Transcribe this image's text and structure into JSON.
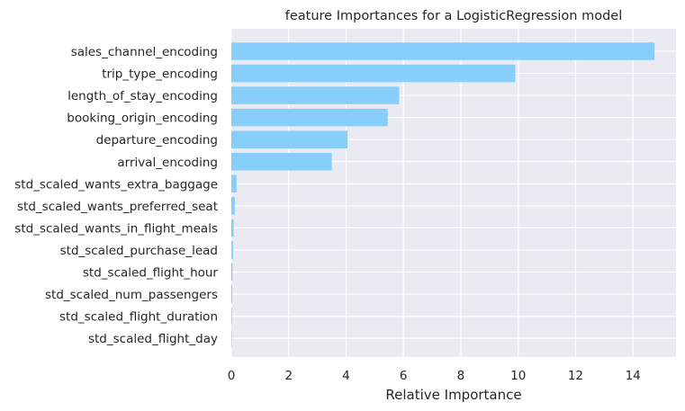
{
  "chart_data": {
    "type": "bar",
    "orientation": "horizontal",
    "title": "feature Importances for a LogisticRegression model",
    "xlabel": "Relative Importance",
    "ylabel": "",
    "xlim": [
      0,
      15.5
    ],
    "xticks": [
      0,
      2,
      4,
      6,
      8,
      10,
      12,
      14
    ],
    "grid": true,
    "bar_color": "#87cefa",
    "background_color": "#eaeaf2",
    "categories": [
      "sales_channel_encoding",
      "trip_type_encoding",
      "length_of_stay_encoding",
      "booking_origin_encoding",
      "departure_encoding",
      "arrival_encoding",
      "std_scaled_wants_extra_baggage",
      "std_scaled_wants_preferred_seat",
      "std_scaled_wants_in_flight_meals",
      "std_scaled_purchase_lead",
      "std_scaled_flight_hour",
      "std_scaled_num_passengers",
      "std_scaled_flight_duration",
      "std_scaled_flight_day"
    ],
    "values": [
      14.75,
      9.9,
      5.85,
      5.45,
      4.05,
      3.5,
      0.18,
      0.12,
      0.08,
      0.06,
      0.04,
      0.03,
      0.02,
      0.01
    ]
  }
}
